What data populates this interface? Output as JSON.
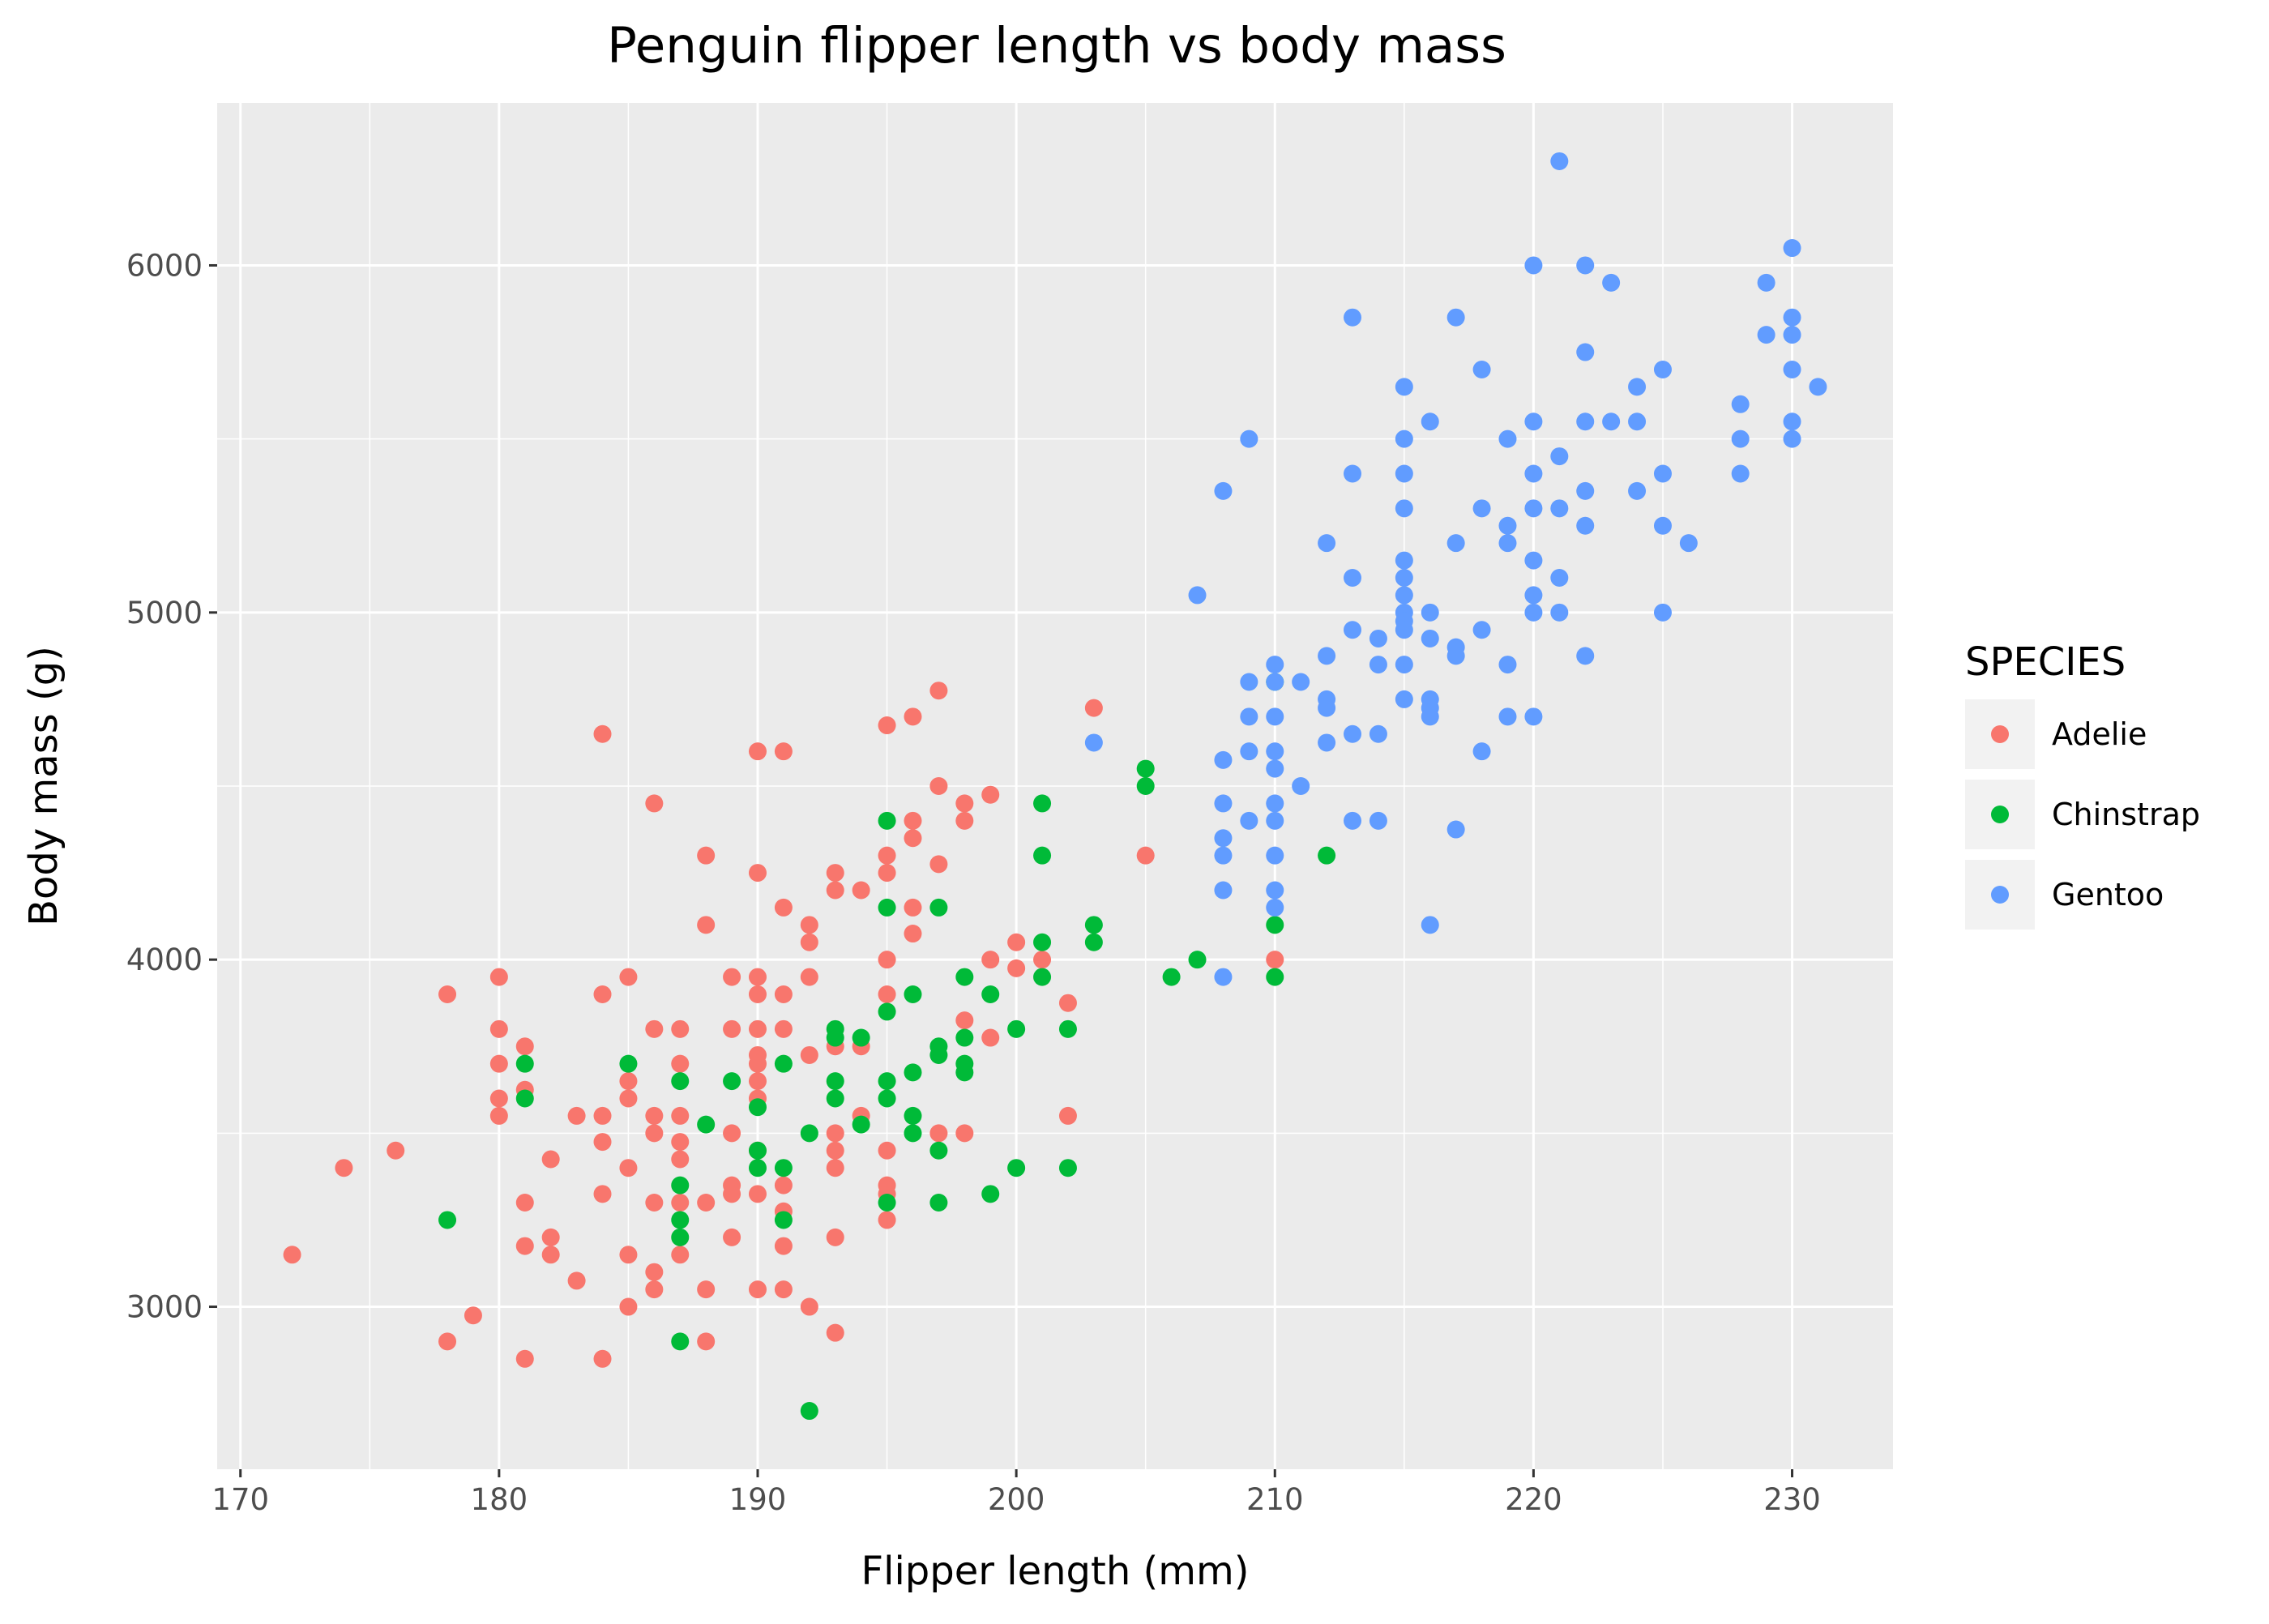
{
  "chart_data": {
    "type": "scatter",
    "title": "Penguin flipper length vs body mass",
    "xlabel": "Flipper length (mm)",
    "ylabel": "Body mass (g)",
    "xlim": [
      169.1,
      233.9
    ],
    "ylim": [
      2532,
      6468
    ],
    "x_ticks": [
      170,
      180,
      190,
      200,
      210,
      220,
      230
    ],
    "y_ticks": [
      3000,
      4000,
      5000,
      6000
    ],
    "grid": true,
    "legend": {
      "title": "SPECIES",
      "position": "right",
      "entries": [
        "Adelie",
        "Chinstrap",
        "Gentoo"
      ]
    },
    "colors": {
      "Adelie": "#F8766D",
      "Chinstrap": "#00BA38",
      "Gentoo": "#619CFF",
      "panel": "#EBEBEB",
      "grid": "#FFFFFF"
    },
    "series": [
      {
        "name": "Adelie",
        "color": "#F8766D",
        "points": [
          [
            172,
            3150
          ],
          [
            174,
            3400
          ],
          [
            176,
            3450
          ],
          [
            178,
            3900
          ],
          [
            178,
            2900
          ],
          [
            179,
            2975
          ],
          [
            180,
            3950
          ],
          [
            180,
            3800
          ],
          [
            180,
            3700
          ],
          [
            180,
            3600
          ],
          [
            180,
            3550
          ],
          [
            181,
            3750
          ],
          [
            181,
            3625
          ],
          [
            181,
            3300
          ],
          [
            181,
            3175
          ],
          [
            181,
            2850
          ],
          [
            182,
            3425
          ],
          [
            182,
            3200
          ],
          [
            182,
            3150
          ],
          [
            183,
            3550
          ],
          [
            183,
            3075
          ],
          [
            184,
            4650
          ],
          [
            184,
            3900
          ],
          [
            184,
            3550
          ],
          [
            184,
            3475
          ],
          [
            184,
            3325
          ],
          [
            184,
            2850
          ],
          [
            185,
            3950
          ],
          [
            185,
            3650
          ],
          [
            185,
            3600
          ],
          [
            185,
            3400
          ],
          [
            185,
            3150
          ],
          [
            185,
            3000
          ],
          [
            186,
            4450
          ],
          [
            186,
            3800
          ],
          [
            186,
            3550
          ],
          [
            186,
            3500
          ],
          [
            186,
            3300
          ],
          [
            186,
            3100
          ],
          [
            186,
            3050
          ],
          [
            187,
            3800
          ],
          [
            187,
            3700
          ],
          [
            187,
            3550
          ],
          [
            187,
            3475
          ],
          [
            187,
            3425
          ],
          [
            187,
            3300
          ],
          [
            187,
            3150
          ],
          [
            188,
            4300
          ],
          [
            188,
            4100
          ],
          [
            188,
            3300
          ],
          [
            188,
            3050
          ],
          [
            188,
            2900
          ],
          [
            189,
            3950
          ],
          [
            189,
            3800
          ],
          [
            189,
            3500
          ],
          [
            189,
            3350
          ],
          [
            189,
            3325
          ],
          [
            189,
            3200
          ],
          [
            190,
            4600
          ],
          [
            190,
            4250
          ],
          [
            190,
            3950
          ],
          [
            190,
            3900
          ],
          [
            190,
            3800
          ],
          [
            190,
            3725
          ],
          [
            190,
            3700
          ],
          [
            190,
            3650
          ],
          [
            190,
            3600
          ],
          [
            190,
            3450
          ],
          [
            190,
            3325
          ],
          [
            190,
            3050
          ],
          [
            191,
            4600
          ],
          [
            191,
            4150
          ],
          [
            191,
            3900
          ],
          [
            191,
            3800
          ],
          [
            191,
            3350
          ],
          [
            191,
            3275
          ],
          [
            191,
            3175
          ],
          [
            191,
            3050
          ],
          [
            192,
            4100
          ],
          [
            192,
            4050
          ],
          [
            192,
            3950
          ],
          [
            192,
            3725
          ],
          [
            192,
            3000
          ],
          [
            193,
            4250
          ],
          [
            193,
            4200
          ],
          [
            193,
            3750
          ],
          [
            193,
            3500
          ],
          [
            193,
            3450
          ],
          [
            193,
            3400
          ],
          [
            193,
            3200
          ],
          [
            193,
            2925
          ],
          [
            194,
            4200
          ],
          [
            194,
            3750
          ],
          [
            194,
            3550
          ],
          [
            195,
            4675
          ],
          [
            195,
            4300
          ],
          [
            195,
            4250
          ],
          [
            195,
            4000
          ],
          [
            195,
            3900
          ],
          [
            195,
            3450
          ],
          [
            195,
            3350
          ],
          [
            195,
            3325
          ],
          [
            195,
            3250
          ],
          [
            196,
            4700
          ],
          [
            196,
            4400
          ],
          [
            196,
            4350
          ],
          [
            196,
            4150
          ],
          [
            196,
            4075
          ],
          [
            197,
            4775
          ],
          [
            197,
            4500
          ],
          [
            197,
            4275
          ],
          [
            197,
            3500
          ],
          [
            198,
            4450
          ],
          [
            198,
            4400
          ],
          [
            198,
            3825
          ],
          [
            198,
            3500
          ],
          [
            199,
            4475
          ],
          [
            199,
            4000
          ],
          [
            199,
            3775
          ],
          [
            200,
            4050
          ],
          [
            200,
            3975
          ],
          [
            201,
            4000
          ],
          [
            202,
            3875
          ],
          [
            202,
            3550
          ],
          [
            203,
            4725
          ],
          [
            205,
            4300
          ],
          [
            210,
            4000
          ]
        ]
      },
      {
        "name": "Chinstrap",
        "color": "#00BA38",
        "points": [
          [
            178,
            3250
          ],
          [
            181,
            3700
          ],
          [
            181,
            3600
          ],
          [
            185,
            3700
          ],
          [
            187,
            3650
          ],
          [
            187,
            3350
          ],
          [
            187,
            3250
          ],
          [
            187,
            3200
          ],
          [
            187,
            2900
          ],
          [
            188,
            3525
          ],
          [
            189,
            3650
          ],
          [
            190,
            3575
          ],
          [
            190,
            3450
          ],
          [
            190,
            3400
          ],
          [
            191,
            3700
          ],
          [
            191,
            3400
          ],
          [
            191,
            3250
          ],
          [
            192,
            3500
          ],
          [
            192,
            2700
          ],
          [
            193,
            3800
          ],
          [
            193,
            3775
          ],
          [
            193,
            3650
          ],
          [
            193,
            3600
          ],
          [
            194,
            3775
          ],
          [
            194,
            3525
          ],
          [
            195,
            4400
          ],
          [
            195,
            4150
          ],
          [
            195,
            3850
          ],
          [
            195,
            3650
          ],
          [
            195,
            3600
          ],
          [
            195,
            3300
          ],
          [
            196,
            3900
          ],
          [
            196,
            3675
          ],
          [
            196,
            3550
          ],
          [
            196,
            3500
          ],
          [
            197,
            4150
          ],
          [
            197,
            3750
          ],
          [
            197,
            3725
          ],
          [
            197,
            3450
          ],
          [
            197,
            3300
          ],
          [
            198,
            3950
          ],
          [
            198,
            3775
          ],
          [
            198,
            3700
          ],
          [
            198,
            3675
          ],
          [
            199,
            3900
          ],
          [
            199,
            3325
          ],
          [
            200,
            3800
          ],
          [
            200,
            3400
          ],
          [
            201,
            4450
          ],
          [
            201,
            4300
          ],
          [
            201,
            4050
          ],
          [
            201,
            3950
          ],
          [
            202,
            3800
          ],
          [
            202,
            3400
          ],
          [
            203,
            4100
          ],
          [
            203,
            4050
          ],
          [
            205,
            4550
          ],
          [
            205,
            4500
          ],
          [
            206,
            3950
          ],
          [
            207,
            4000
          ],
          [
            210,
            4800
          ],
          [
            210,
            4100
          ],
          [
            210,
            3950
          ],
          [
            212,
            4300
          ]
        ]
      },
      {
        "name": "Gentoo",
        "color": "#619CFF",
        "points": [
          [
            203,
            4625
          ],
          [
            207,
            5050
          ],
          [
            208,
            5350
          ],
          [
            208,
            4575
          ],
          [
            208,
            4450
          ],
          [
            208,
            4350
          ],
          [
            208,
            4300
          ],
          [
            208,
            4200
          ],
          [
            208,
            3950
          ],
          [
            209,
            5500
          ],
          [
            209,
            4800
          ],
          [
            209,
            4700
          ],
          [
            209,
            4600
          ],
          [
            209,
            4400
          ],
          [
            210,
            4850
          ],
          [
            210,
            4800
          ],
          [
            210,
            4700
          ],
          [
            210,
            4600
          ],
          [
            210,
            4550
          ],
          [
            210,
            4450
          ],
          [
            210,
            4400
          ],
          [
            210,
            4300
          ],
          [
            210,
            4200
          ],
          [
            210,
            4150
          ],
          [
            211,
            4800
          ],
          [
            211,
            4500
          ],
          [
            212,
            5200
          ],
          [
            212,
            4875
          ],
          [
            212,
            4750
          ],
          [
            212,
            4725
          ],
          [
            212,
            4625
          ],
          [
            213,
            5850
          ],
          [
            213,
            5400
          ],
          [
            213,
            5100
          ],
          [
            213,
            4950
          ],
          [
            213,
            4650
          ],
          [
            213,
            4400
          ],
          [
            214,
            4925
          ],
          [
            214,
            4850
          ],
          [
            214,
            4650
          ],
          [
            214,
            4400
          ],
          [
            215,
            5650
          ],
          [
            215,
            5500
          ],
          [
            215,
            5400
          ],
          [
            215,
            5300
          ],
          [
            215,
            5150
          ],
          [
            215,
            5100
          ],
          [
            215,
            5050
          ],
          [
            215,
            5000
          ],
          [
            215,
            4975
          ],
          [
            215,
            4950
          ],
          [
            215,
            4850
          ],
          [
            215,
            4750
          ],
          [
            216,
            5550
          ],
          [
            216,
            5000
          ],
          [
            216,
            4925
          ],
          [
            216,
            4750
          ],
          [
            216,
            4725
          ],
          [
            216,
            4700
          ],
          [
            216,
            4100
          ],
          [
            217,
            5850
          ],
          [
            217,
            5200
          ],
          [
            217,
            4900
          ],
          [
            217,
            4875
          ],
          [
            217,
            4375
          ],
          [
            218,
            5700
          ],
          [
            218,
            5300
          ],
          [
            218,
            4950
          ],
          [
            218,
            4600
          ],
          [
            219,
            5500
          ],
          [
            219,
            5250
          ],
          [
            219,
            5200
          ],
          [
            219,
            4850
          ],
          [
            219,
            4700
          ],
          [
            220,
            6000
          ],
          [
            220,
            5550
          ],
          [
            220,
            5400
          ],
          [
            220,
            5300
          ],
          [
            220,
            5150
          ],
          [
            220,
            5050
          ],
          [
            220,
            5000
          ],
          [
            220,
            4700
          ],
          [
            221,
            6300
          ],
          [
            221,
            5450
          ],
          [
            221,
            5300
          ],
          [
            221,
            5100
          ],
          [
            221,
            5000
          ],
          [
            222,
            6000
          ],
          [
            222,
            5750
          ],
          [
            222,
            5550
          ],
          [
            222,
            5350
          ],
          [
            222,
            5250
          ],
          [
            222,
            4875
          ],
          [
            223,
            5950
          ],
          [
            223,
            5550
          ],
          [
            224,
            5650
          ],
          [
            224,
            5550
          ],
          [
            224,
            5350
          ],
          [
            225,
            5700
          ],
          [
            225,
            5400
          ],
          [
            225,
            5250
          ],
          [
            225,
            5000
          ],
          [
            226,
            5200
          ],
          [
            228,
            5600
          ],
          [
            228,
            5500
          ],
          [
            228,
            5400
          ],
          [
            229,
            5950
          ],
          [
            229,
            5800
          ],
          [
            230,
            6050
          ],
          [
            230,
            5850
          ],
          [
            230,
            5800
          ],
          [
            230,
            5700
          ],
          [
            230,
            5550
          ],
          [
            230,
            5500
          ],
          [
            231,
            5650
          ]
        ]
      }
    ]
  }
}
